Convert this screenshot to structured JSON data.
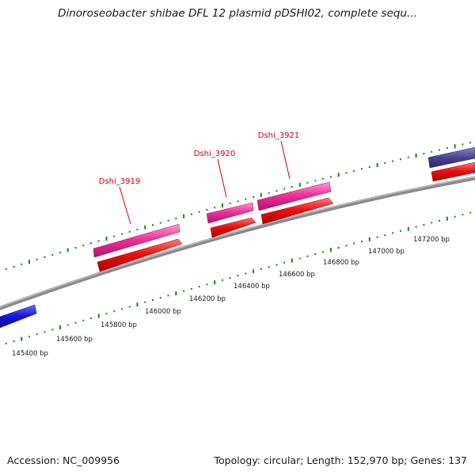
{
  "title": "Dinoroseobacter shibae DFL 12 plasmid pDSHI02, complete sequ...",
  "footer": {
    "accession": "Accession: NC_009956",
    "summary": "Topology: circular; Length: 152,970 bp; Genes: 137"
  },
  "scale_ticks": [
    {
      "label": "145400 bp"
    },
    {
      "label": "145600 bp"
    },
    {
      "label": "145800 bp"
    },
    {
      "label": "146000 bp"
    },
    {
      "label": "146200 bp"
    },
    {
      "label": "146400 bp"
    },
    {
      "label": "146600 bp"
    },
    {
      "label": "146800 bp"
    },
    {
      "label": "147000 bp"
    },
    {
      "label": "147200 bp"
    }
  ],
  "genes": [
    {
      "label": "Dshi_3919"
    },
    {
      "label": "Dshi_3920"
    },
    {
      "label": "Dshi_3921"
    }
  ],
  "colors": {
    "backbone": "#8a8a8a",
    "gene_forward": "#ee3399",
    "cds_forward": "#ee1111",
    "gene_other": "#4a4494",
    "cds_reverse": "#1515dd",
    "ticks": "#118811",
    "gene_label": "#cc0000"
  }
}
